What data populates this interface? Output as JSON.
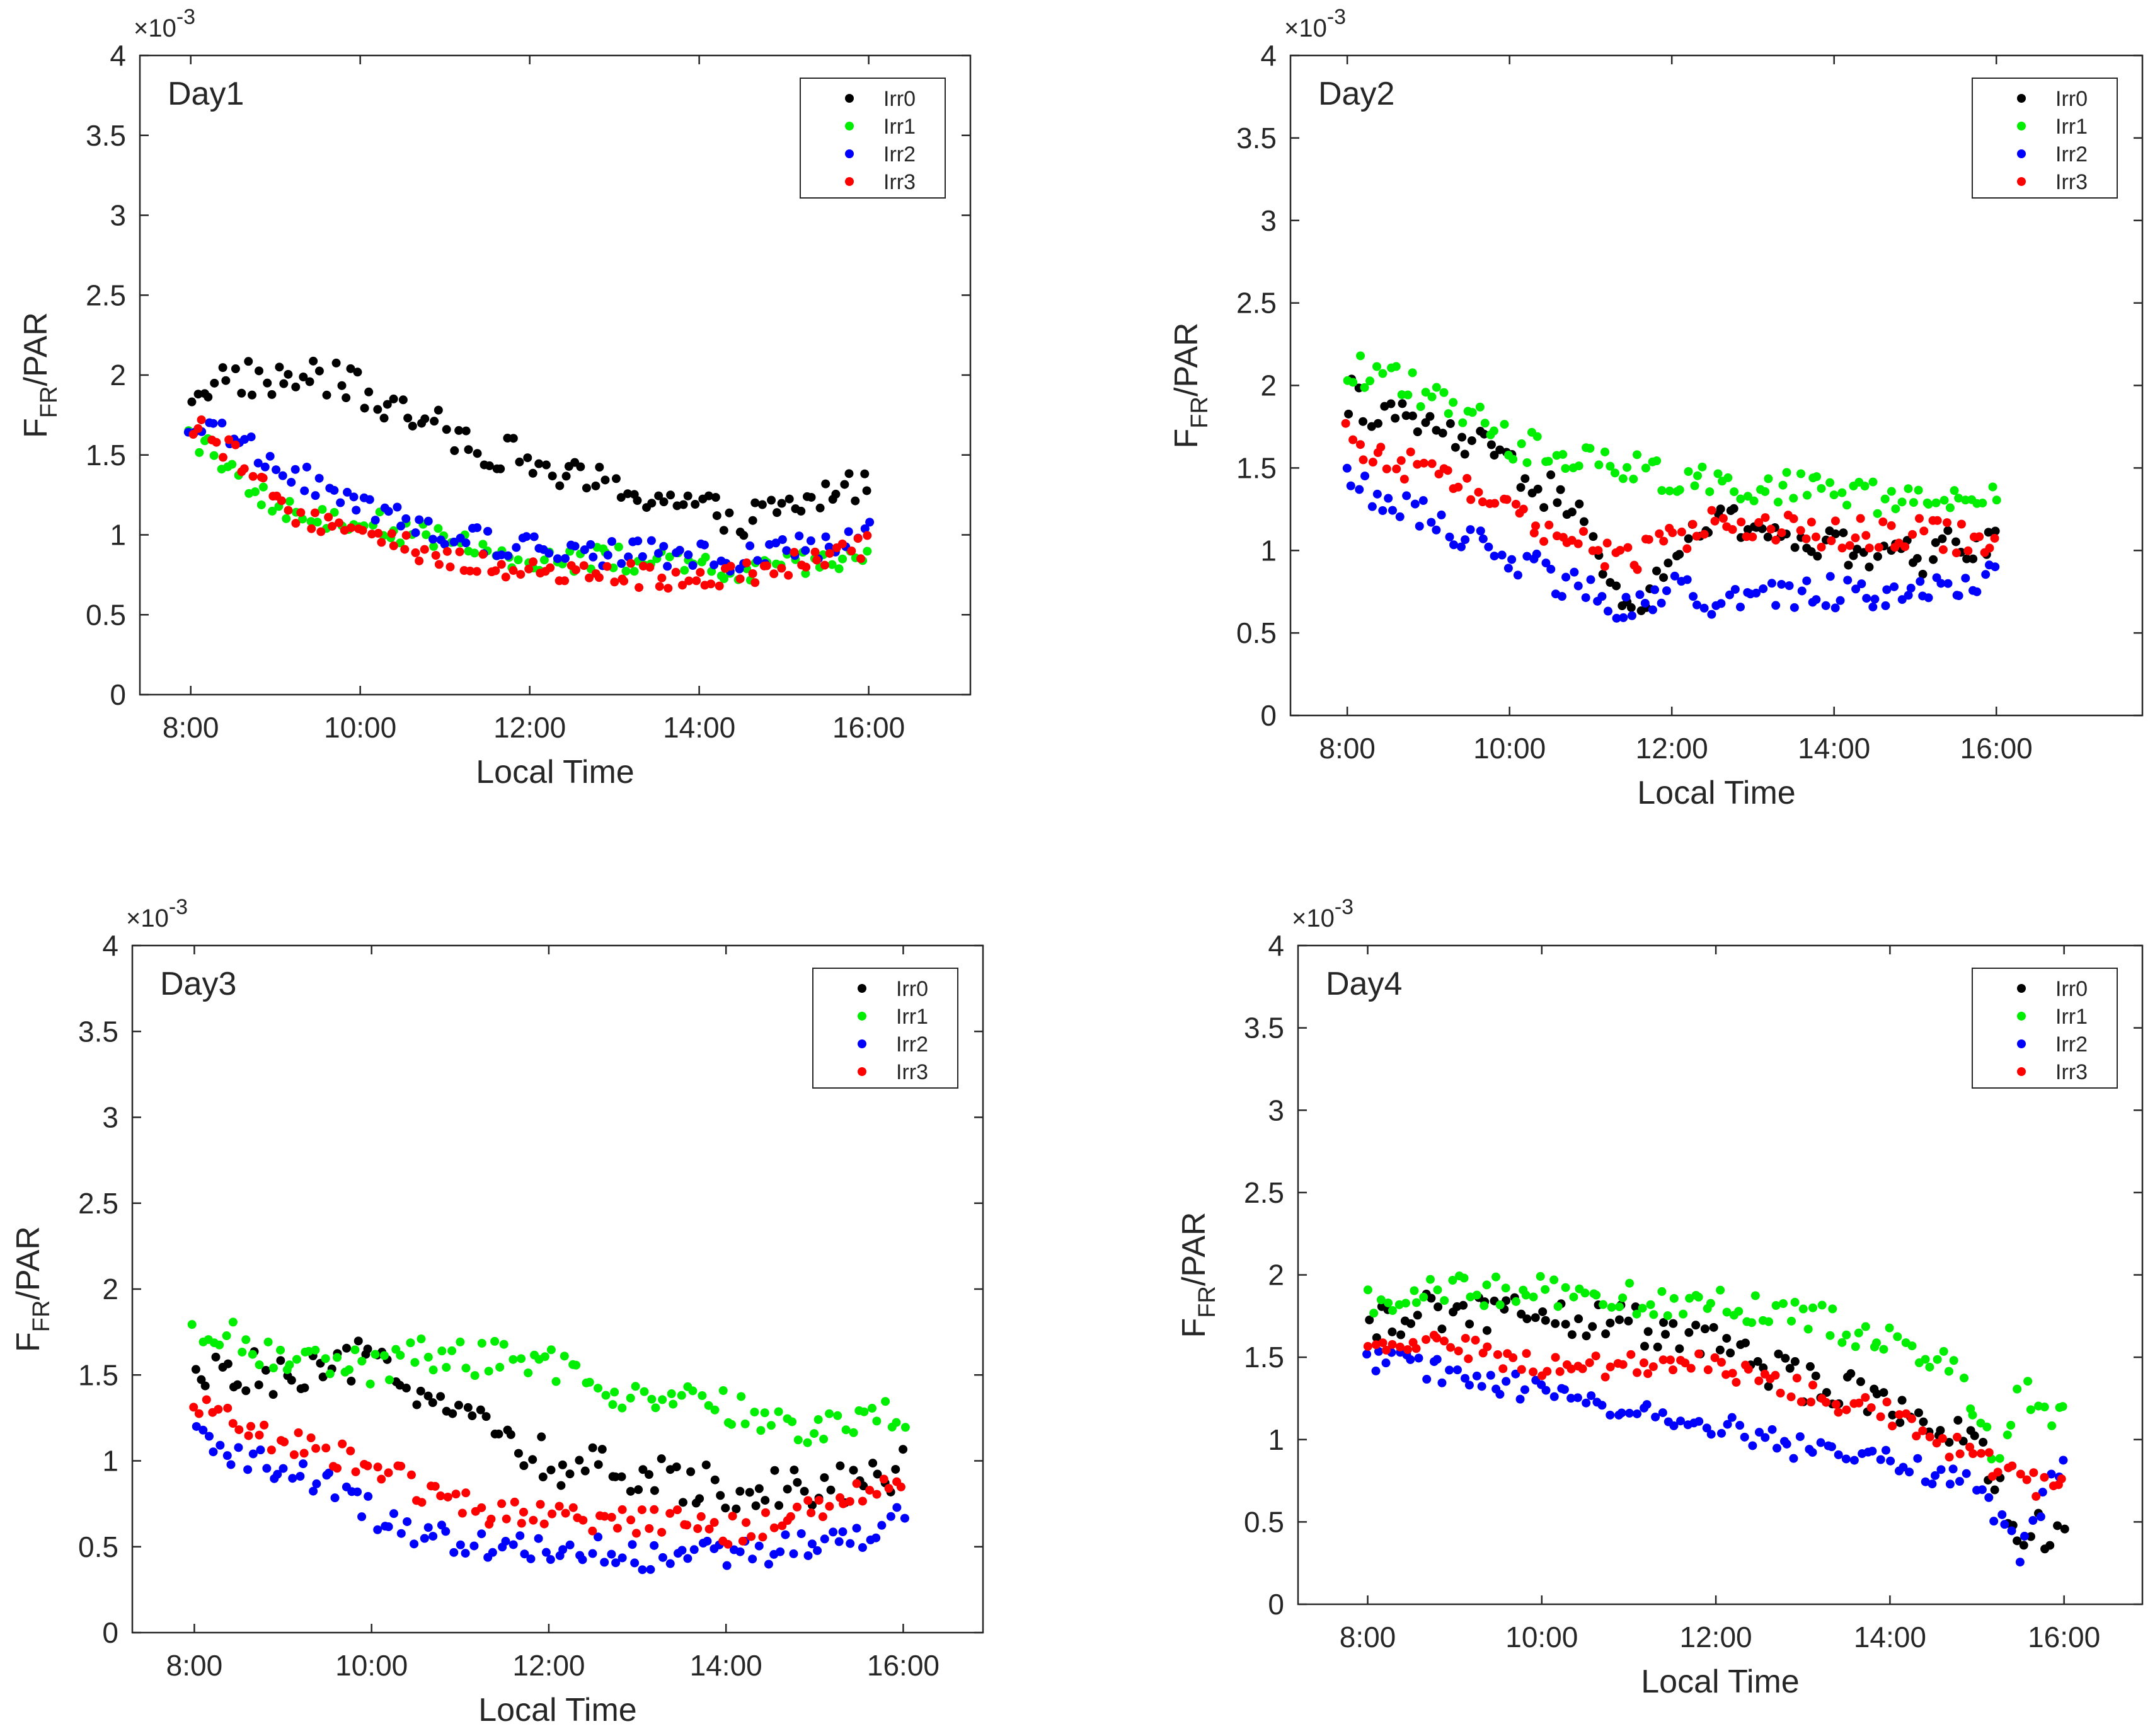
{
  "chart_data": [
    {
      "type": "scatter",
      "panel_title": "Day1",
      "xlabel": "Local Time",
      "ylabel": "F",
      "ylabel_sub": "FR",
      "ylabel_suffix": "/PAR",
      "y_exponent": "×10",
      "y_exponent_power": "-3",
      "xlim": [
        7.4,
        17.2
      ],
      "ylim": [
        0,
        4
      ],
      "x_ticks": [
        8,
        10,
        12,
        14,
        16
      ],
      "x_tick_labels": [
        "8:00",
        "10:00",
        "12:00",
        "14:00",
        "16:00"
      ],
      "y_ticks": [
        0,
        0.5,
        1,
        1.5,
        2,
        2.5,
        3,
        3.5,
        4
      ],
      "y_tick_labels": [
        "0",
        "0.5",
        "1",
        "1.5",
        "2",
        "2.5",
        "3",
        "3.5",
        "4"
      ],
      "grid": false,
      "legend_position": "top-right",
      "series": [
        {
          "name": "Irr0",
          "color": "#000000",
          "anchors": [
            [
              8,
              1.9
            ],
            [
              8.5,
              2.0
            ],
            [
              9,
              1.95
            ],
            [
              9.5,
              2.0
            ],
            [
              10,
              1.9
            ],
            [
              10.5,
              1.75
            ],
            [
              11,
              1.65
            ],
            [
              11.5,
              1.55
            ],
            [
              12,
              1.45
            ],
            [
              12.5,
              1.35
            ],
            [
              13,
              1.3
            ],
            [
              13.5,
              1.25
            ],
            [
              14,
              1.15
            ],
            [
              14.5,
              1.1
            ],
            [
              15,
              1.15
            ],
            [
              15.5,
              1.25
            ],
            [
              16,
              1.35
            ]
          ],
          "jitter": 0.12
        },
        {
          "name": "Irr1",
          "color": "#00ee00",
          "anchors": [
            [
              8,
              1.6
            ],
            [
              8.5,
              1.45
            ],
            [
              9,
              1.15
            ],
            [
              10,
              1.1
            ],
            [
              11,
              0.95
            ],
            [
              12,
              0.85
            ],
            [
              13,
              0.85
            ],
            [
              14,
              0.8
            ],
            [
              14.5,
              0.75
            ],
            [
              15,
              0.8
            ],
            [
              16,
              0.85
            ]
          ],
          "jitter": 0.08
        },
        {
          "name": "Irr2",
          "color": "#0000ff",
          "anchors": [
            [
              8,
              1.7
            ],
            [
              8.5,
              1.6
            ],
            [
              9,
              1.45
            ],
            [
              9.5,
              1.3
            ],
            [
              10,
              1.15
            ],
            [
              11,
              1.0
            ],
            [
              12,
              0.92
            ],
            [
              13,
              0.88
            ],
            [
              14,
              0.88
            ],
            [
              14.5,
              0.85
            ],
            [
              15,
              0.9
            ],
            [
              16,
              1.0
            ]
          ],
          "jitter": 0.09
        },
        {
          "name": "Irr3",
          "color": "#ff0000",
          "anchors": [
            [
              8,
              1.7
            ],
            [
              8.5,
              1.5
            ],
            [
              9,
              1.2
            ],
            [
              10,
              1.0
            ],
            [
              11,
              0.85
            ],
            [
              12,
              0.78
            ],
            [
              13,
              0.75
            ],
            [
              14,
              0.72
            ],
            [
              14.5,
              0.75
            ],
            [
              15,
              0.8
            ],
            [
              16,
              0.92
            ]
          ],
          "jitter": 0.08
        }
      ]
    },
    {
      "type": "scatter",
      "panel_title": "Day2",
      "xlabel": "Local Time",
      "ylabel": "F",
      "ylabel_sub": "FR",
      "ylabel_suffix": "/PAR",
      "y_exponent": "×10",
      "y_exponent_power": "-3",
      "xlim": [
        7.3,
        17.8
      ],
      "ylim": [
        0,
        4
      ],
      "x_ticks": [
        8,
        10,
        12,
        14,
        16
      ],
      "x_tick_labels": [
        "8:00",
        "10:00",
        "12:00",
        "14:00",
        "16:00"
      ],
      "y_ticks": [
        0,
        0.5,
        1,
        1.5,
        2,
        2.5,
        3,
        3.5,
        4
      ],
      "y_tick_labels": [
        "0",
        "0.5",
        "1",
        "1.5",
        "2",
        "2.5",
        "3",
        "3.5",
        "4"
      ],
      "grid": false,
      "legend_position": "top-right",
      "series": [
        {
          "name": "Irr0",
          "color": "#000000",
          "anchors": [
            [
              8,
              1.95
            ],
            [
              8.5,
              1.8
            ],
            [
              9,
              1.75
            ],
            [
              9.5,
              1.65
            ],
            [
              10,
              1.5
            ],
            [
              10.5,
              1.35
            ],
            [
              11,
              1.1
            ],
            [
              11.3,
              0.8
            ],
            [
              11.5,
              0.55
            ],
            [
              12,
              1.0
            ],
            [
              12.5,
              1.15
            ],
            [
              13,
              1.15
            ],
            [
              14,
              1.0
            ],
            [
              15,
              0.95
            ],
            [
              16,
              1.1
            ]
          ],
          "jitter": 0.12
        },
        {
          "name": "Irr1",
          "color": "#00ee00",
          "anchors": [
            [
              8,
              2.1
            ],
            [
              8.5,
              2.05
            ],
            [
              9,
              1.95
            ],
            [
              9.5,
              1.85
            ],
            [
              10,
              1.65
            ],
            [
              10.5,
              1.6
            ],
            [
              11,
              1.55
            ],
            [
              11.5,
              1.5
            ],
            [
              12,
              1.45
            ],
            [
              13,
              1.4
            ],
            [
              14,
              1.35
            ],
            [
              15,
              1.3
            ],
            [
              16,
              1.3
            ]
          ],
          "jitter": 0.1
        },
        {
          "name": "Irr2",
          "color": "#0000ff",
          "anchors": [
            [
              8,
              1.4
            ],
            [
              8.5,
              1.3
            ],
            [
              9,
              1.2
            ],
            [
              9.5,
              1.05
            ],
            [
              10,
              0.95
            ],
            [
              10.5,
              0.85
            ],
            [
              11,
              0.75
            ],
            [
              11.5,
              0.65
            ],
            [
              12,
              0.75
            ],
            [
              12.5,
              0.7
            ],
            [
              13,
              0.72
            ],
            [
              14,
              0.75
            ],
            [
              15,
              0.72
            ],
            [
              16,
              0.85
            ]
          ],
          "jitter": 0.1
        },
        {
          "name": "Irr3",
          "color": "#ff0000",
          "anchors": [
            [
              8,
              1.7
            ],
            [
              8.5,
              1.55
            ],
            [
              9,
              1.5
            ],
            [
              9.5,
              1.4
            ],
            [
              10,
              1.3
            ],
            [
              10.5,
              1.1
            ],
            [
              11,
              1.0
            ],
            [
              11.5,
              0.95
            ],
            [
              12,
              1.05
            ],
            [
              12.5,
              1.15
            ],
            [
              13,
              1.15
            ],
            [
              14,
              1.1
            ],
            [
              15,
              1.1
            ],
            [
              16,
              1.05
            ]
          ],
          "jitter": 0.1
        }
      ]
    },
    {
      "type": "scatter",
      "panel_title": "Day3",
      "xlabel": "Local Time",
      "ylabel": "F",
      "ylabel_sub": "FR",
      "ylabel_suffix": "/PAR",
      "y_exponent": "×10",
      "y_exponent_power": "-3",
      "xlim": [
        7.3,
        16.9
      ],
      "ylim": [
        0,
        4
      ],
      "x_ticks": [
        8,
        10,
        12,
        14,
        16
      ],
      "x_tick_labels": [
        "8:00",
        "10:00",
        "12:00",
        "14:00",
        "16:00"
      ],
      "y_ticks": [
        0,
        0.5,
        1,
        1.5,
        2,
        2.5,
        3,
        3.5,
        4
      ],
      "y_tick_labels": [
        "0",
        "0.5",
        "1",
        "1.5",
        "2",
        "2.5",
        "3",
        "3.5",
        "4"
      ],
      "grid": false,
      "legend_position": "top-right",
      "series": [
        {
          "name": "Irr0",
          "color": "#000000",
          "anchors": [
            [
              8,
              1.45
            ],
            [
              8.5,
              1.55
            ],
            [
              9,
              1.45
            ],
            [
              9.5,
              1.5
            ],
            [
              10,
              1.6
            ],
            [
              10.5,
              1.45
            ],
            [
              11,
              1.3
            ],
            [
              11.5,
              1.1
            ],
            [
              12,
              1.0
            ],
            [
              12.5,
              0.95
            ],
            [
              13,
              0.9
            ],
            [
              14,
              0.85
            ],
            [
              15,
              0.85
            ],
            [
              16,
              0.95
            ]
          ],
          "jitter": 0.13
        },
        {
          "name": "Irr1",
          "color": "#00ee00",
          "anchors": [
            [
              8,
              1.8
            ],
            [
              8.5,
              1.7
            ],
            [
              9,
              1.6
            ],
            [
              9.5,
              1.55
            ],
            [
              10,
              1.55
            ],
            [
              10.5,
              1.6
            ],
            [
              11,
              1.6
            ],
            [
              11.5,
              1.6
            ],
            [
              12,
              1.55
            ],
            [
              12.5,
              1.45
            ],
            [
              13,
              1.35
            ],
            [
              14,
              1.3
            ],
            [
              15,
              1.2
            ],
            [
              16,
              1.25
            ]
          ],
          "jitter": 0.11
        },
        {
          "name": "Irr2",
          "color": "#0000ff",
          "anchors": [
            [
              8,
              1.15
            ],
            [
              8.5,
              1.05
            ],
            [
              9,
              0.95
            ],
            [
              9.5,
              0.85
            ],
            [
              10,
              0.7
            ],
            [
              10.5,
              0.6
            ],
            [
              11,
              0.5
            ],
            [
              11.5,
              0.5
            ],
            [
              12,
              0.5
            ],
            [
              13,
              0.45
            ],
            [
              14,
              0.45
            ],
            [
              15,
              0.5
            ],
            [
              16,
              0.65
            ]
          ],
          "jitter": 0.09
        },
        {
          "name": "Irr3",
          "color": "#ff0000",
          "anchors": [
            [
              8,
              1.3
            ],
            [
              8.5,
              1.2
            ],
            [
              9,
              1.1
            ],
            [
              9.5,
              1.05
            ],
            [
              10,
              1.0
            ],
            [
              10.5,
              0.85
            ],
            [
              11,
              0.75
            ],
            [
              11.5,
              0.7
            ],
            [
              12,
              0.65
            ],
            [
              13,
              0.65
            ],
            [
              14,
              0.6
            ],
            [
              15,
              0.7
            ],
            [
              16,
              0.9
            ]
          ],
          "jitter": 0.09
        }
      ]
    },
    {
      "type": "scatter",
      "panel_title": "Day4",
      "xlabel": "Local Time",
      "ylabel": "F",
      "ylabel_sub": "FR",
      "ylabel_suffix": "/PAR",
      "y_exponent": "×10",
      "y_exponent_power": "-3",
      "xlim": [
        7.2,
        16.9
      ],
      "ylim": [
        0,
        4
      ],
      "x_ticks": [
        8,
        10,
        12,
        14,
        16
      ],
      "x_tick_labels": [
        "8:00",
        "10:00",
        "12:00",
        "14:00",
        "16:00"
      ],
      "y_ticks": [
        0,
        0.5,
        1,
        1.5,
        2,
        2.5,
        3,
        3.5,
        4
      ],
      "y_tick_labels": [
        "0",
        "0.5",
        "1",
        "1.5",
        "2",
        "2.5",
        "3",
        "3.5",
        "4"
      ],
      "grid": false,
      "legend_position": "top-right",
      "series": [
        {
          "name": "Irr0",
          "color": "#000000",
          "anchors": [
            [
              8,
              1.7
            ],
            [
              9,
              1.8
            ],
            [
              10,
              1.75
            ],
            [
              11,
              1.7
            ],
            [
              12,
              1.6
            ],
            [
              12.5,
              1.45
            ],
            [
              13,
              1.35
            ],
            [
              13.5,
              1.3
            ],
            [
              14,
              1.25
            ],
            [
              14.5,
              1.1
            ],
            [
              15,
              0.95
            ],
            [
              15.5,
              0.4
            ],
            [
              16,
              0.5
            ]
          ],
          "jitter": 0.12
        },
        {
          "name": "Irr1",
          "color": "#00ee00",
          "anchors": [
            [
              8,
              1.85
            ],
            [
              9,
              1.9
            ],
            [
              10,
              1.9
            ],
            [
              11,
              1.85
            ],
            [
              11.8,
              1.85
            ],
            [
              12.5,
              1.8
            ],
            [
              13,
              1.75
            ],
            [
              14,
              1.6
            ],
            [
              14.8,
              1.4
            ],
            [
              15.2,
              0.9
            ],
            [
              15.5,
              1.3
            ],
            [
              16,
              1.1
            ]
          ],
          "jitter": 0.1
        },
        {
          "name": "Irr2",
          "color": "#0000ff",
          "anchors": [
            [
              8,
              1.5
            ],
            [
              9,
              1.4
            ],
            [
              10,
              1.3
            ],
            [
              11,
              1.2
            ],
            [
              12,
              1.1
            ],
            [
              12.5,
              1.0
            ],
            [
              13,
              0.95
            ],
            [
              14,
              0.9
            ],
            [
              14.5,
              0.8
            ],
            [
              15,
              0.7
            ],
            [
              15.5,
              0.3
            ],
            [
              16,
              0.9
            ]
          ],
          "jitter": 0.08
        },
        {
          "name": "Irr3",
          "color": "#ff0000",
          "anchors": [
            [
              8,
              1.6
            ],
            [
              9,
              1.55
            ],
            [
              10,
              1.45
            ],
            [
              11,
              1.45
            ],
            [
              12,
              1.45
            ],
            [
              13,
              1.3
            ],
            [
              14,
              1.15
            ],
            [
              14.5,
              1.0
            ],
            [
              15,
              0.9
            ],
            [
              15.5,
              0.75
            ],
            [
              16,
              0.7
            ]
          ],
          "jitter": 0.08
        }
      ]
    }
  ]
}
